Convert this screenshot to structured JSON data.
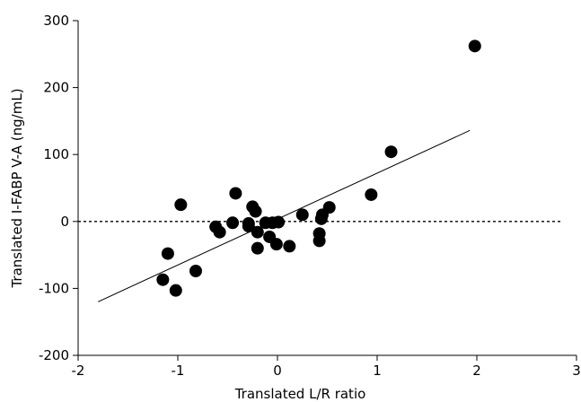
{
  "chart_data": {
    "type": "scatter",
    "title": "",
    "xlabel": "Translated L/R ratio",
    "ylabel": "Translated I-FABP V-A (ng/mL)",
    "xlim": [
      -2,
      3
    ],
    "ylim": [
      -200,
      300
    ],
    "x_ticks": [
      -2,
      -1,
      0,
      1,
      2,
      3
    ],
    "y_ticks": [
      -200,
      -100,
      0,
      100,
      200,
      300
    ],
    "x_tick_labels": [
      "-2",
      "-1",
      "0",
      "1",
      "2",
      "3"
    ],
    "y_tick_labels": [
      "-200",
      "-100",
      "0",
      "100",
      "200",
      "300"
    ],
    "points": [
      {
        "x": 1.98,
        "y": 262
      },
      {
        "x": 1.14,
        "y": 104
      },
      {
        "x": 0.94,
        "y": 40
      },
      {
        "x": 0.52,
        "y": 21
      },
      {
        "x": 0.45,
        "y": 10
      },
      {
        "x": 0.44,
        "y": 4
      },
      {
        "x": 0.42,
        "y": -18
      },
      {
        "x": 0.42,
        "y": -29
      },
      {
        "x": 0.25,
        "y": 10
      },
      {
        "x": 0.12,
        "y": -37
      },
      {
        "x": 0.01,
        "y": -1
      },
      {
        "x": -0.01,
        "y": -34
      },
      {
        "x": -0.05,
        "y": -2
      },
      {
        "x": -0.08,
        "y": -23
      },
      {
        "x": -0.12,
        "y": -2
      },
      {
        "x": -0.2,
        "y": -40
      },
      {
        "x": -0.2,
        "y": -16
      },
      {
        "x": -0.22,
        "y": 15
      },
      {
        "x": -0.25,
        "y": 22
      },
      {
        "x": -0.29,
        "y": -7
      },
      {
        "x": -0.29,
        "y": -3
      },
      {
        "x": -0.42,
        "y": 42
      },
      {
        "x": -0.45,
        "y": -2
      },
      {
        "x": -0.58,
        "y": -16
      },
      {
        "x": -0.62,
        "y": -8
      },
      {
        "x": -0.82,
        "y": -74
      },
      {
        "x": -0.97,
        "y": 25
      },
      {
        "x": -1.02,
        "y": -103
      },
      {
        "x": -1.1,
        "y": -48
      },
      {
        "x": -1.15,
        "y": -87
      }
    ],
    "regression_line": {
      "x": [
        -1.8,
        1.93
      ],
      "y": [
        -120,
        136
      ]
    },
    "reference_line": {
      "y": 0,
      "style": "dashed"
    },
    "grid": false,
    "legend": "none"
  }
}
